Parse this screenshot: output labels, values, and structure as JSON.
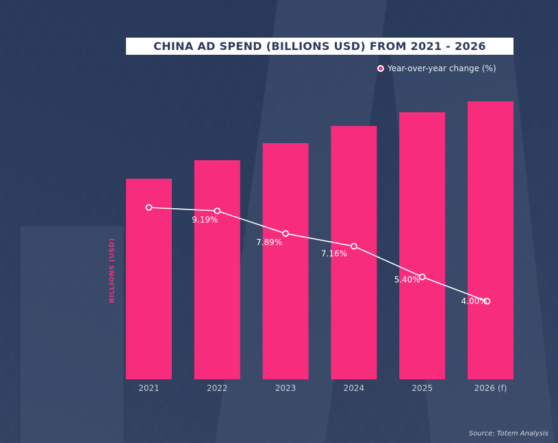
{
  "chart_data": {
    "type": "bar",
    "title": "CHINA AD SPEND (BILLIONS USD) FROM 2021 - 2026",
    "ylabel": "BILLIONS (USD)",
    "categories": [
      "2021",
      "2022",
      "2023",
      "2024",
      "2025",
      "2026 (f)"
    ],
    "series": [
      {
        "type": "bar",
        "values": [
          293,
          320,
          345,
          370,
          390,
          406
        ],
        "color": "#f72c7c"
      },
      {
        "type": "line",
        "name": "Year-over-year change (%)",
        "values": [
          null,
          9.19,
          7.89,
          7.16,
          5.4,
          4.0
        ],
        "labels": [
          "",
          "9.19%",
          "7.89%",
          "7.16%",
          "5.40%",
          "4.00%"
        ],
        "color": "#ffffff"
      }
    ],
    "ylim": [
      0,
      406
    ],
    "grid": false,
    "legend_position": "top-right",
    "source": "Source: Totem Analysis"
  }
}
